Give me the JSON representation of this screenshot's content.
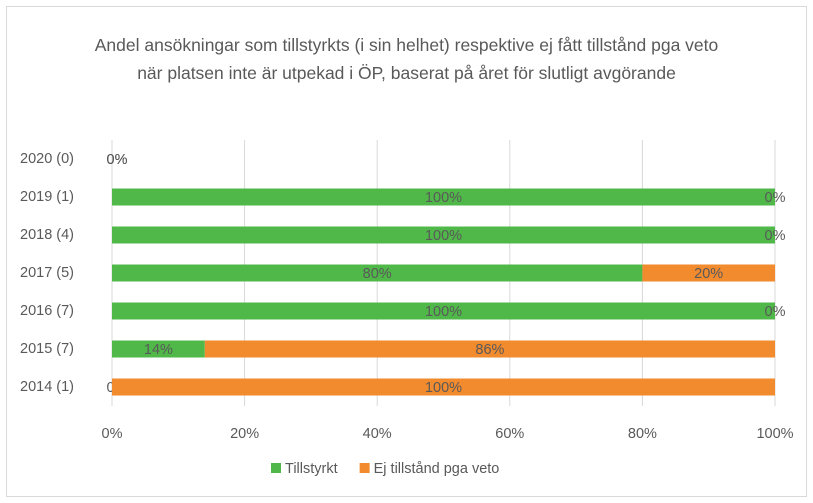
{
  "chart_data": {
    "type": "stacked-hbar",
    "title": "Andel ansökningar som tillstyrkts (i sin helhet) respektive ej fått tillstånd pga veto när platsen inte är utpekad i ÖP, baserat på året för slutligt avgörande",
    "categories": [
      "2020 (0)",
      "2019 (1)",
      "2018 (4)",
      "2017 (5)",
      "2016 (7)",
      "2015 (7)",
      "2014 (1)"
    ],
    "series": [
      {
        "name": "Tillstyrkt",
        "color": "#4fb848",
        "values": [
          0,
          100,
          100,
          80,
          100,
          14,
          0
        ],
        "value_labels": [
          "0%",
          "100%",
          "100%",
          "80%",
          "100%",
          "14%",
          "0%"
        ]
      },
      {
        "name": "Ej tillstånd pga veto",
        "color": "#f28a2e",
        "values": [
          0,
          0,
          0,
          20,
          0,
          86,
          100
        ],
        "value_labels": [
          "0%",
          "0%",
          "0%",
          "20%",
          "0%",
          "86%",
          "100%"
        ]
      }
    ],
    "xlim": [
      0,
      100
    ],
    "xticks": [
      {
        "value": 0,
        "label": "0%"
      },
      {
        "value": 20,
        "label": "20%"
      },
      {
        "value": 40,
        "label": "40%"
      },
      {
        "value": 60,
        "label": "60%"
      },
      {
        "value": 80,
        "label": "80%"
      },
      {
        "value": 100,
        "label": "100%"
      }
    ],
    "grid": true,
    "legend": "bottom"
  }
}
